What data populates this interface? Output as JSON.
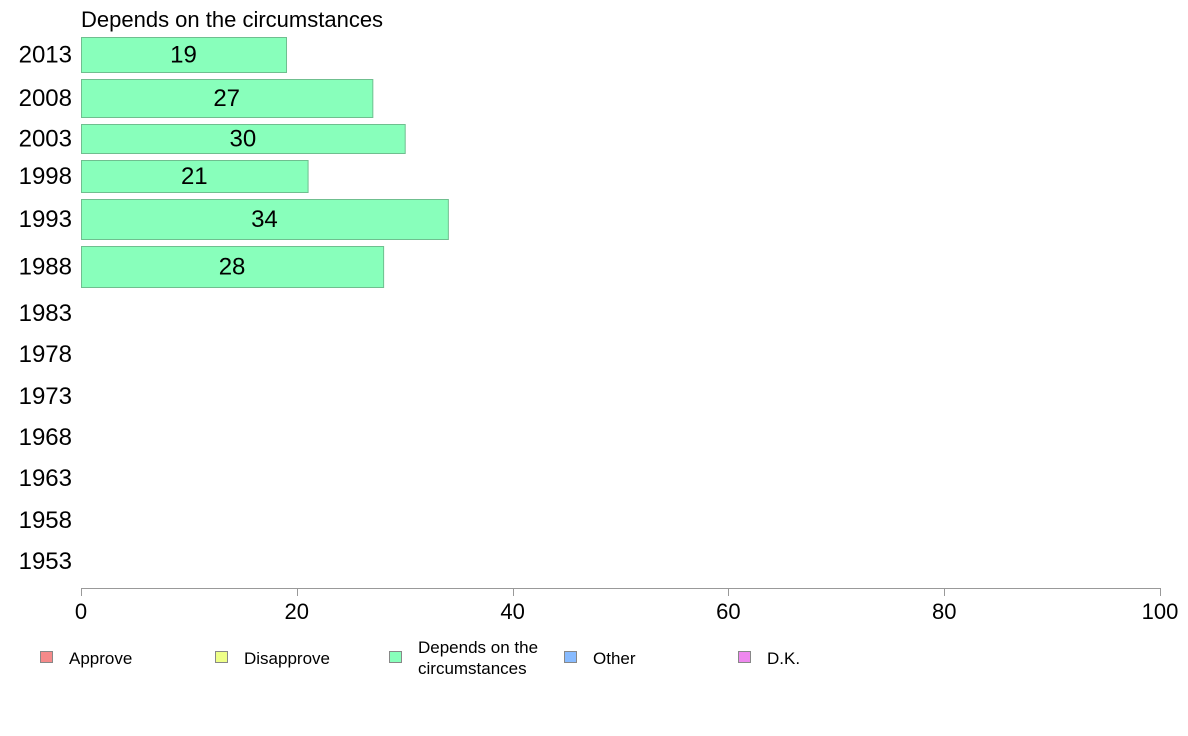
{
  "chart_data": {
    "type": "bar",
    "orientation": "horizontal",
    "title": "Depends on the circumstances",
    "categories": [
      "2013",
      "2008",
      "2003",
      "1998",
      "1993",
      "1988",
      "1983",
      "1978",
      "1973",
      "1968",
      "1963",
      "1958",
      "1953"
    ],
    "series": [
      {
        "name": "Depends on the circumstances",
        "values": [
          19,
          27,
          30,
          21,
          34,
          28,
          null,
          null,
          null,
          null,
          null,
          null,
          null
        ],
        "color": "#88ffbb"
      }
    ],
    "xlim": [
      0,
      100
    ],
    "xticks": [
      0,
      20,
      40,
      60,
      80,
      100
    ],
    "grid": false,
    "legend": {
      "placement": "bottom",
      "entries": [
        {
          "label": "Approve",
          "color": "#f58a8a"
        },
        {
          "label": "Disapprove",
          "color": "#eeff88"
        },
        {
          "label": "Depends on the circumstances",
          "label_lines": [
            "Depends on the",
            "circumstances"
          ],
          "color": "#88ffbb"
        },
        {
          "label": "Other",
          "color": "#88bbff"
        },
        {
          "label": "D.K.",
          "color": "#ee88ee"
        }
      ]
    },
    "bar_stroke": "#6fbf8f",
    "axis_color": "#999999"
  }
}
